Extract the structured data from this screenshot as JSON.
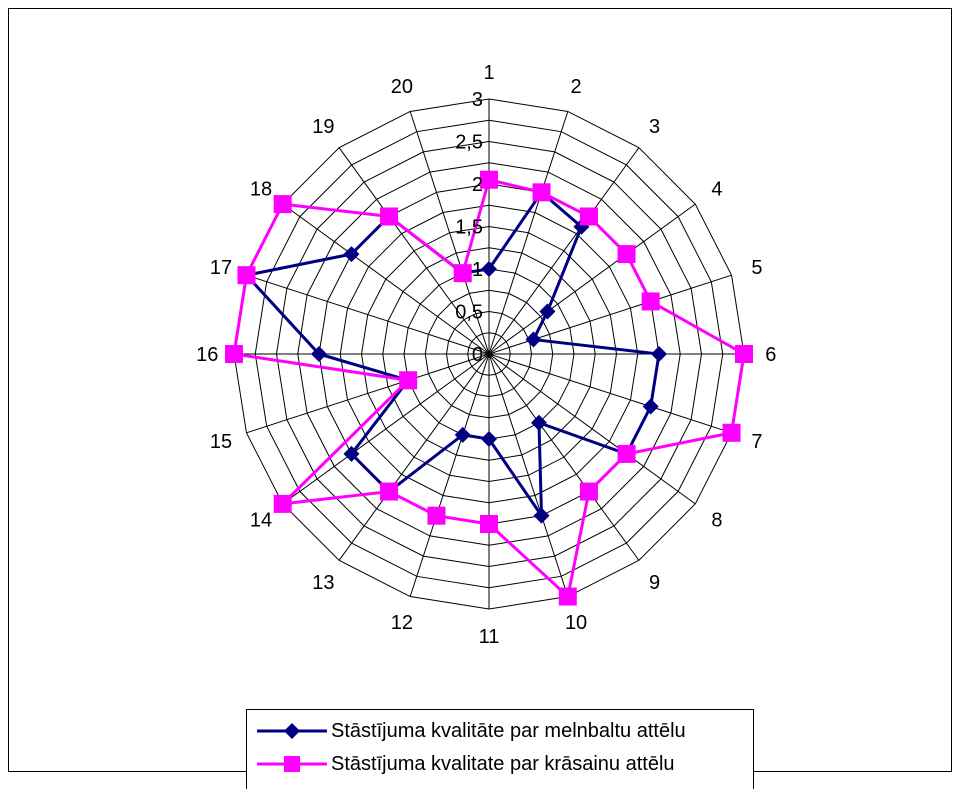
{
  "chart_data": {
    "type": "radar",
    "categories": [
      "1",
      "2",
      "3",
      "4",
      "5",
      "6",
      "7",
      "8",
      "9",
      "10",
      "11",
      "12",
      "13",
      "14",
      "15",
      "16",
      "17",
      "18",
      "19",
      "20"
    ],
    "r_ticks": [
      "0",
      "0,5",
      "1",
      "1,5",
      "2",
      "2,5",
      "3"
    ],
    "rlim": [
      0,
      3
    ],
    "grid": true,
    "legend_position": "bottom",
    "series": [
      {
        "name": "Stāstījuma kvalitāte par melnbaltu attēlu",
        "color": "#000080",
        "marker": "diamond",
        "values": [
          1.0,
          2.0,
          1.85,
          0.85,
          0.55,
          2.0,
          2.0,
          2.0,
          1.0,
          2.0,
          1.0,
          1.0,
          2.0,
          2.0,
          1.0,
          2.0,
          3.0,
          2.0,
          2.0,
          1.0
        ]
      },
      {
        "name": "Stāstījuma kvalitate par krāsainu attēlu",
        "color": "#FF00FF",
        "marker": "square",
        "values": [
          2.05,
          2.0,
          2.0,
          2.0,
          2.0,
          3.0,
          3.0,
          2.0,
          2.0,
          3.0,
          2.0,
          2.0,
          2.0,
          3.0,
          1.0,
          3.0,
          3.0,
          3.0,
          2.0,
          1.0
        ]
      }
    ]
  }
}
